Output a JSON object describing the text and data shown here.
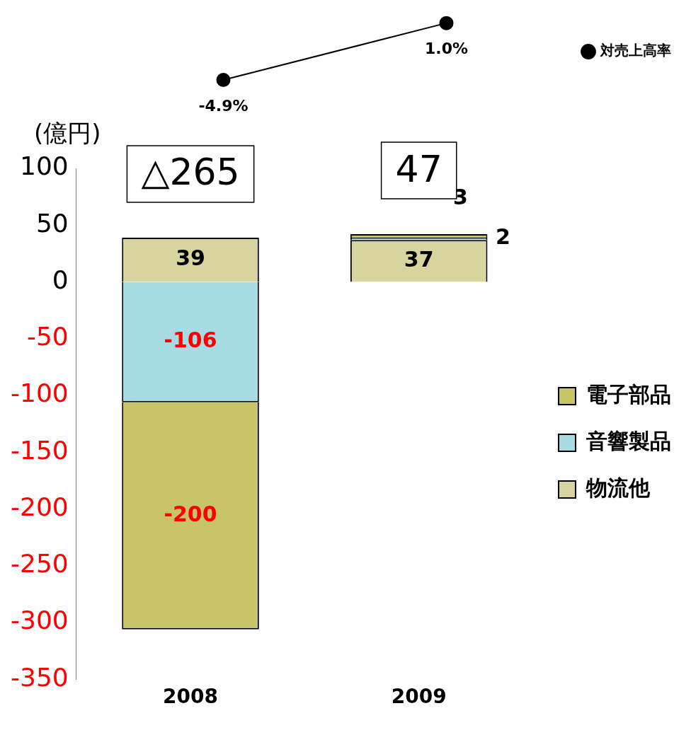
{
  "chart_data": [
    {
      "type": "line",
      "categories": [
        "2008",
        "2009"
      ],
      "tick_labels": false,
      "legend": "right",
      "marker": "circle",
      "line_style": "solid",
      "series": [
        {
          "name": "対売上高率",
          "color": "#000000",
          "values": [
            -4.9,
            1.0
          ],
          "value_labels": [
            "-4.9%",
            "1.0%"
          ]
        }
      ]
    },
    {
      "type": "bar",
      "ylabel": "(億円)",
      "categories": [
        "2008",
        "2009"
      ],
      "stacked": true,
      "series": [
        {
          "name": "物流他",
          "color": "#d8d4a0",
          "values": [
            39,
            37
          ]
        },
        {
          "name": "音響製品",
          "color": "#a8dce4",
          "values": [
            -106,
            2
          ]
        },
        {
          "name": "電子部品",
          "color": "#c8c468",
          "values": [
            -200,
            3
          ]
        }
      ],
      "annotations": [
        "△265",
        "47"
      ],
      "ylim": [
        -350,
        100
      ],
      "yticks": [
        -350,
        -300,
        -250,
        -200,
        -150,
        -100,
        -50,
        0,
        50,
        100
      ],
      "data_labels": true,
      "grid": false,
      "legend": "right"
    }
  ]
}
